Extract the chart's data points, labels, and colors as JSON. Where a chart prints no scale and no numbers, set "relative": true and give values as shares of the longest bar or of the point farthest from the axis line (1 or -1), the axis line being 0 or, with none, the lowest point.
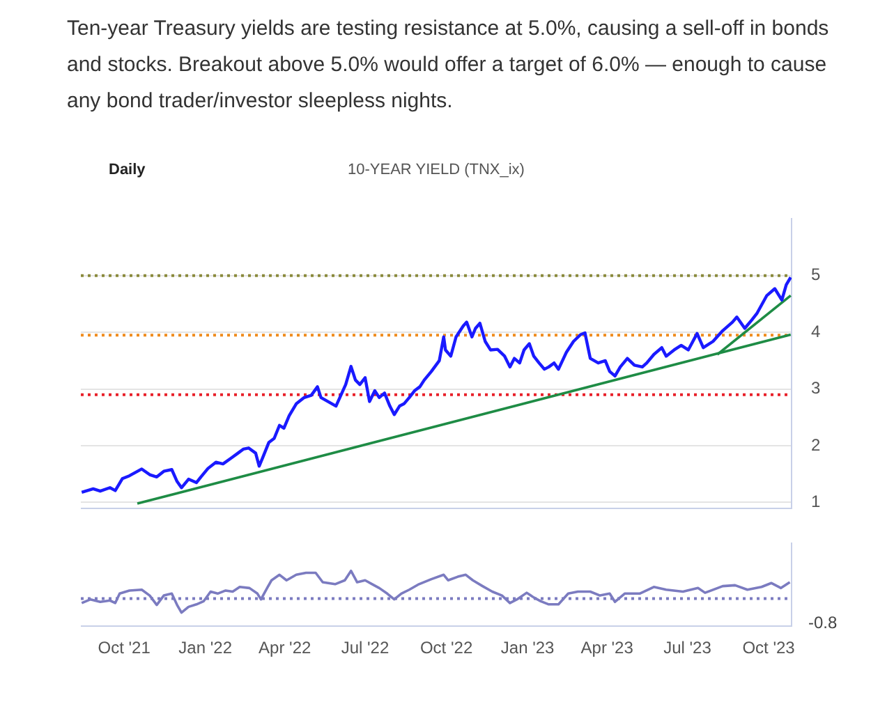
{
  "chart_data": [
    {
      "type": "line",
      "title": "10-YEAR YIELD (TNX_ix)",
      "subtitle": "Daily",
      "annotations": [
        "Ten-year Treasury yields are testing resistance at 5.0%, causing a sell-off in bonds and stocks. Breakout above 5.0% would offer a target of 6.0% — enough to cause any bond trader/investor sleepless nights."
      ],
      "xlim": [
        "2021-08-13",
        "2023-10-27"
      ],
      "ylim": [
        0.9,
        6.0
      ],
      "yticks": [
        1,
        2,
        3,
        4,
        5
      ],
      "grid": "y",
      "tick_labels": "y",
      "marker": "none",
      "ref_lines": [
        {
          "axis": "y",
          "value": 5.0,
          "color": "#8a8a3c",
          "line_style": "dotted"
        },
        {
          "axis": "y",
          "value": 3.95,
          "color": "#f08c1e",
          "line_style": "dotted"
        },
        {
          "axis": "y",
          "value": 2.9,
          "color": "#e8202a",
          "line_style": "dotted"
        }
      ],
      "series": [
        {
          "color": "#1a1aff",
          "x": [
            "2021-08-14",
            "2021-08-27",
            "2021-09-04",
            "2021-09-15",
            "2021-09-21",
            "2021-09-29",
            "2021-10-07",
            "2021-10-21",
            "2021-10-30",
            "2021-11-07",
            "2021-11-15",
            "2021-11-24",
            "2021-11-30",
            "2021-12-05",
            "2021-12-13",
            "2021-12-22",
            "2021-12-27",
            "2022-01-04",
            "2022-01-13",
            "2022-01-21",
            "2022-01-30",
            "2022-02-07",
            "2022-02-13",
            "2022-02-19",
            "2022-02-27",
            "2022-03-03",
            "2022-03-07",
            "2022-03-14",
            "2022-03-20",
            "2022-03-26",
            "2022-03-31",
            "2022-04-06",
            "2022-04-14",
            "2022-04-23",
            "2022-05-01",
            "2022-05-08",
            "2022-05-12",
            "2022-05-20",
            "2022-05-29",
            "2022-06-09",
            "2022-06-15",
            "2022-06-20",
            "2022-06-25",
            "2022-07-01",
            "2022-07-06",
            "2022-07-12",
            "2022-07-17",
            "2022-07-23",
            "2022-07-29",
            "2022-08-03",
            "2022-08-09",
            "2022-08-14",
            "2022-08-20",
            "2022-08-26",
            "2022-09-01",
            "2022-09-06",
            "2022-09-14",
            "2022-09-23",
            "2022-09-28",
            "2022-09-30",
            "2022-10-06",
            "2022-10-12",
            "2022-10-20",
            "2022-10-24",
            "2022-10-30",
            "2022-11-03",
            "2022-11-08",
            "2022-11-14",
            "2022-11-20",
            "2022-11-28",
            "2022-12-06",
            "2022-12-12",
            "2022-12-17",
            "2022-12-23",
            "2022-12-28",
            "2023-01-03",
            "2023-01-08",
            "2023-01-14",
            "2023-01-20",
            "2023-01-25",
            "2023-01-31",
            "2023-02-05",
            "2023-02-14",
            "2023-02-22",
            "2023-03-02",
            "2023-03-07",
            "2023-03-13",
            "2023-03-22",
            "2023-03-30",
            "2023-04-04",
            "2023-04-10",
            "2023-04-16",
            "2023-04-24",
            "2023-05-02",
            "2023-05-11",
            "2023-05-16",
            "2023-05-24",
            "2023-06-02",
            "2023-06-07",
            "2023-06-16",
            "2023-06-24",
            "2023-07-02",
            "2023-07-12",
            "2023-07-19",
            "2023-07-30",
            "2023-08-10",
            "2023-08-21",
            "2023-08-26",
            "2023-09-04",
            "2023-09-12",
            "2023-09-18",
            "2023-09-29",
            "2023-10-08",
            "2023-10-16",
            "2023-10-21",
            "2023-10-26"
          ],
          "values": [
            1.18,
            1.24,
            1.2,
            1.26,
            1.21,
            1.42,
            1.47,
            1.59,
            1.49,
            1.45,
            1.55,
            1.58,
            1.37,
            1.26,
            1.41,
            1.35,
            1.45,
            1.6,
            1.71,
            1.68,
            1.78,
            1.87,
            1.94,
            1.96,
            1.87,
            1.64,
            1.79,
            2.06,
            2.13,
            2.36,
            2.31,
            2.53,
            2.74,
            2.85,
            2.89,
            3.04,
            2.85,
            2.78,
            2.7,
            3.08,
            3.4,
            3.16,
            3.08,
            3.2,
            2.78,
            2.97,
            2.85,
            2.93,
            2.7,
            2.55,
            2.7,
            2.74,
            2.85,
            2.97,
            3.04,
            3.16,
            3.31,
            3.5,
            3.92,
            3.69,
            3.58,
            3.92,
            4.11,
            4.18,
            3.92,
            4.07,
            4.16,
            3.84,
            3.69,
            3.7,
            3.58,
            3.39,
            3.54,
            3.46,
            3.69,
            3.8,
            3.58,
            3.46,
            3.35,
            3.39,
            3.46,
            3.35,
            3.65,
            3.84,
            3.96,
            3.99,
            3.54,
            3.46,
            3.5,
            3.31,
            3.23,
            3.39,
            3.54,
            3.42,
            3.39,
            3.46,
            3.61,
            3.73,
            3.58,
            3.69,
            3.77,
            3.69,
            3.98,
            3.73,
            3.84,
            4.03,
            4.18,
            4.27,
            4.07,
            4.22,
            4.34,
            4.65,
            4.77,
            4.57,
            4.84,
            4.97
          ]
        },
        {
          "color": "#1e8c45",
          "x": [
            "2021-10-16",
            "2023-10-26"
          ],
          "values": [
            0.98,
            3.96
          ]
        },
        {
          "color": "#1e8c45",
          "x": [
            "2023-08-04",
            "2023-10-26"
          ],
          "values": [
            3.61,
            4.65
          ]
        }
      ]
    },
    {
      "type": "line",
      "relative": true,
      "annotations": [
        "-0.8"
      ],
      "marker": "none",
      "xlim": [
        "2021-08-13",
        "2023-10-27"
      ],
      "xticks": [
        {
          "value": "2021-10-01",
          "label": "Oct '21"
        },
        {
          "value": "2022-01-01",
          "label": "Jan '22"
        },
        {
          "value": "2022-04-01",
          "label": "Apr '22"
        },
        {
          "value": "2022-07-01",
          "label": "Jul '22"
        },
        {
          "value": "2022-10-01",
          "label": "Oct '22"
        },
        {
          "value": "2023-01-01",
          "label": "Jan '23"
        },
        {
          "value": "2023-04-01",
          "label": "Apr '23"
        },
        {
          "value": "2023-07-01",
          "label": "Jul '23"
        },
        {
          "value": "2023-10-01",
          "label": "Oct '23"
        }
      ],
      "tick_labels": "x",
      "ref_lines": [
        {
          "axis": "y",
          "value": 0,
          "color": "#7b7bc0",
          "line_style": "dotted"
        }
      ],
      "series": [
        {
          "color": "#7b7bc0",
          "x": [
            "2021-08-14",
            "2021-08-24",
            "2021-09-04",
            "2021-09-15",
            "2021-09-21",
            "2021-09-26",
            "2021-10-07",
            "2021-10-21",
            "2021-10-30",
            "2021-11-07",
            "2021-11-15",
            "2021-11-24",
            "2021-11-30",
            "2021-12-05",
            "2021-12-13",
            "2021-12-22",
            "2021-12-30",
            "2022-01-07",
            "2022-01-15",
            "2022-01-24",
            "2022-02-01",
            "2022-02-09",
            "2022-02-20",
            "2022-03-01",
            "2022-03-05",
            "2022-03-12",
            "2022-03-17",
            "2022-03-26",
            "2022-04-03",
            "2022-04-14",
            "2022-04-25",
            "2022-05-06",
            "2022-05-14",
            "2022-05-28",
            "2022-06-08",
            "2022-06-15",
            "2022-06-22",
            "2022-07-01",
            "2022-07-09",
            "2022-07-17",
            "2022-07-26",
            "2022-08-03",
            "2022-08-11",
            "2022-08-20",
            "2022-08-31",
            "2022-09-14",
            "2022-09-28",
            "2022-10-03",
            "2022-10-14",
            "2022-10-23",
            "2022-10-31",
            "2022-11-11",
            "2022-11-22",
            "2022-12-03",
            "2022-12-12",
            "2022-12-20",
            "2022-12-31",
            "2023-01-08",
            "2023-01-16",
            "2023-01-25",
            "2023-02-05",
            "2023-02-16",
            "2023-02-27",
            "2023-03-13",
            "2023-03-24",
            "2023-04-04",
            "2023-04-10",
            "2023-04-21",
            "2023-05-08",
            "2023-05-24",
            "2023-06-07",
            "2023-06-26",
            "2023-07-13",
            "2023-07-21",
            "2023-08-10",
            "2023-08-24",
            "2023-09-07",
            "2023-09-23",
            "2023-10-04",
            "2023-10-15",
            "2023-10-25"
          ],
          "values": [
            -0.16,
            -0.03,
            -0.12,
            -0.07,
            -0.16,
            0.18,
            0.29,
            0.32,
            0.11,
            -0.23,
            0.11,
            0.18,
            -0.23,
            -0.51,
            -0.3,
            -0.21,
            -0.1,
            0.25,
            0.18,
            0.29,
            0.25,
            0.42,
            0.38,
            0.18,
            -0.03,
            0.38,
            0.66,
            0.86,
            0.66,
            0.86,
            0.93,
            0.93,
            0.59,
            0.52,
            0.66,
            1,
            0.59,
            0.66,
            0.52,
            0.38,
            0.18,
            -0.03,
            0.18,
            0.32,
            0.52,
            0.7,
            0.86,
            0.66,
            0.79,
            0.86,
            0.66,
            0.45,
            0.25,
            0.11,
            -0.16,
            -0.03,
            0.21,
            0.04,
            -0.1,
            -0.21,
            -0.21,
            0.18,
            0.25,
            0.25,
            0.11,
            0.18,
            -0.12,
            0.18,
            0.18,
            0.42,
            0.32,
            0.25,
            0.38,
            0.21,
            0.45,
            0.48,
            0.32,
            0.42,
            0.56,
            0.38,
            0.59
          ]
        }
      ]
    }
  ]
}
